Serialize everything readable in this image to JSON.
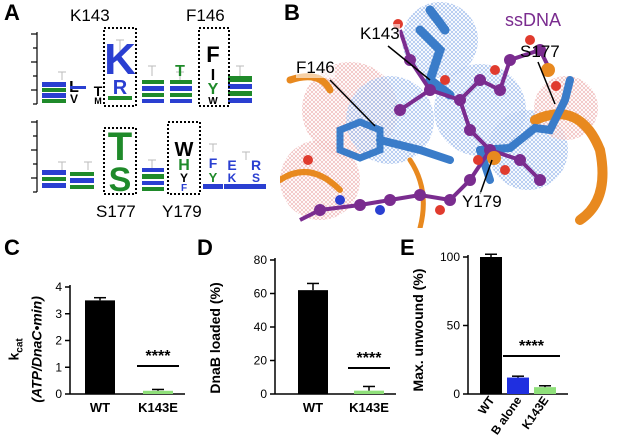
{
  "figure": {
    "panel_a": {
      "letter": "A",
      "top_labels": [
        "K143",
        "F146"
      ],
      "bottom_labels": [
        "S177",
        "Y179"
      ],
      "glyphs_top": [
        "K",
        "R",
        "F",
        "Y"
      ],
      "glyphs_bottom": [
        "T",
        "S",
        "W",
        "H"
      ]
    },
    "panel_b": {
      "letter": "B",
      "labels": [
        "K143",
        "ssDNA",
        "F146",
        "S177",
        "Y179"
      ]
    },
    "colors": {
      "blue": "#2a3fd1",
      "green": "#1f8a2a",
      "purple": "#7a2c8f",
      "orange": "#e8891f",
      "stick_blue": "#3a7cc9",
      "light_green": "#8fe07a",
      "bar_blue": "#1f2fe0"
    }
  },
  "chart_data": [
    {
      "panel": "C",
      "type": "bar",
      "ylabel_top": "k",
      "ylabel_sub": "cat",
      "ylabel_bottom": "(ATP/DnaC•min)",
      "categories": [
        "WT",
        "K143E"
      ],
      "values": [
        3.5,
        0.12
      ],
      "errors": [
        0.1,
        0.05
      ],
      "bar_colors": [
        "#000000",
        "#8fe07a"
      ],
      "ylim": [
        0,
        4
      ],
      "yticks": [
        "0",
        "1",
        "2",
        "3",
        "4"
      ],
      "significance": "****"
    },
    {
      "panel": "D",
      "type": "bar",
      "ylabel": "DnaB loaded (%)",
      "categories": [
        "WT",
        "K143E"
      ],
      "values": [
        62,
        2
      ],
      "errors": [
        4,
        2.5
      ],
      "bar_colors": [
        "#000000",
        "#8fe07a"
      ],
      "ylim": [
        0,
        80
      ],
      "yticks": [
        "0",
        "20",
        "40",
        "60",
        "80"
      ],
      "significance": "****"
    },
    {
      "panel": "E",
      "type": "bar",
      "ylabel": "Max. unwound (%)",
      "categories": [
        "WT",
        "B alone",
        "K143E"
      ],
      "values": [
        100,
        12,
        5
      ],
      "errors": [
        2,
        1,
        1
      ],
      "bar_colors": [
        "#000000",
        "#1f2fe0",
        "#8fe07a"
      ],
      "ylim": [
        0,
        100
      ],
      "yticks": [
        "0",
        "50",
        "100"
      ],
      "significance": "****"
    }
  ]
}
